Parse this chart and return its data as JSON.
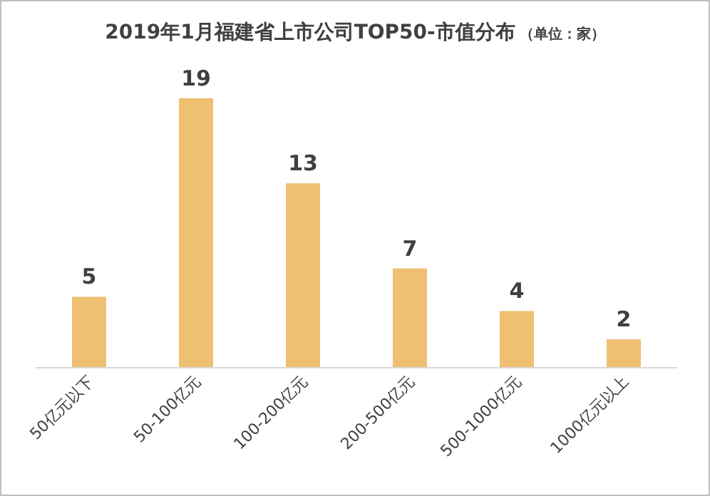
{
  "chart_data": {
    "type": "bar",
    "title": "2019年1月福建省上市公司TOP50-市值分布",
    "subtitle": "（单位：家）",
    "categories": [
      "50亿元以下",
      "50-100亿元",
      "100-200亿元",
      "200-500亿元",
      "500-1000亿元",
      "1000亿元以上"
    ],
    "values": [
      5,
      19,
      13,
      7,
      4,
      2
    ],
    "color": "#efbf72",
    "data_labels": true
  }
}
